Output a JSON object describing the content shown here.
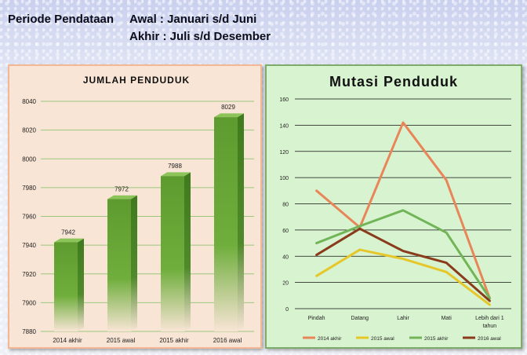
{
  "header": {
    "label": "Periode Pendataan",
    "awal": "Awal : Januari s/d Juni",
    "akhir": "Akhir : Juli s/d Desember"
  },
  "colors": {
    "bar": "#5e9b2f",
    "series_2014_akhir": "#e8865a",
    "series_2015_awal": "#e6c72a",
    "series_2015_akhir": "#72b558",
    "series_2016_awal": "#8a3b1c"
  },
  "chart_data": [
    {
      "type": "bar",
      "title": "JUMLAH PENDUDUK",
      "categories": [
        "2014 akhir",
        "2015 awal",
        "2015 akhir",
        "2016 awal"
      ],
      "values": [
        7942,
        7972,
        7988,
        8029
      ],
      "ylim": [
        7880,
        8040
      ],
      "yticks": [
        7880,
        7900,
        7920,
        7940,
        7960,
        7980,
        8000,
        8020,
        8040
      ],
      "grid": true
    },
    {
      "type": "line",
      "title": "Mutasi Penduduk",
      "categories": [
        "Pindah",
        "Datang",
        "Lahir",
        "Mati",
        "Lebih dari 1 tahun"
      ],
      "series": [
        {
          "name": "2014 akhir",
          "values": [
            90,
            62,
            142,
            98,
            8
          ]
        },
        {
          "name": "2015 awal",
          "values": [
            25,
            45,
            38,
            28,
            3
          ]
        },
        {
          "name": "2015 akhir",
          "values": [
            50,
            63,
            75,
            58,
            8
          ]
        },
        {
          "name": "2016 awal",
          "values": [
            41,
            61,
            44,
            35,
            6
          ]
        }
      ],
      "ylim": [
        0,
        160
      ],
      "yticks": [
        0,
        20,
        40,
        60,
        80,
        100,
        120,
        140,
        160
      ],
      "grid": true,
      "legend": "bottom"
    }
  ]
}
